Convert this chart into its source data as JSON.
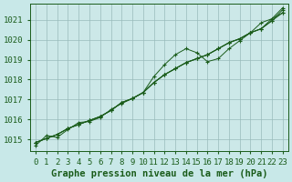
{
  "xlabel": "Graphe pression niveau de la mer (hPa)",
  "bg_color": "#c8e8e8",
  "plot_bg_color": "#cce8e8",
  "grid_color": "#99bbbb",
  "line_color": "#1a5c1a",
  "marker_color": "#1a5c1a",
  "text_color": "#1a5c1a",
  "ylim": [
    1014.4,
    1021.8
  ],
  "xlim": [
    -0.5,
    23.5
  ],
  "yticks": [
    1015,
    1016,
    1017,
    1018,
    1019,
    1020,
    1021
  ],
  "xticks": [
    0,
    1,
    2,
    3,
    4,
    5,
    6,
    7,
    8,
    9,
    10,
    11,
    12,
    13,
    14,
    15,
    16,
    17,
    18,
    19,
    20,
    21,
    22,
    23
  ],
  "series": [
    [
      1014.7,
      1015.2,
      1015.1,
      1015.5,
      1015.85,
      1015.9,
      1016.1,
      1016.5,
      1016.8,
      1017.05,
      1017.35,
      1018.15,
      1018.75,
      1019.25,
      1019.55,
      1019.35,
      1018.9,
      1019.05,
      1019.55,
      1019.95,
      1020.35,
      1020.85,
      1021.05,
      1021.35
    ],
    [
      1014.85,
      1015.05,
      1015.25,
      1015.55,
      1015.75,
      1015.95,
      1016.15,
      1016.45,
      1016.85,
      1017.05,
      1017.35,
      1017.85,
      1018.25,
      1018.55,
      1018.85,
      1019.05,
      1019.25,
      1019.55,
      1019.85,
      1020.05,
      1020.35,
      1020.55,
      1020.95,
      1021.35
    ],
    [
      1014.85,
      1015.05,
      1015.25,
      1015.55,
      1015.75,
      1015.95,
      1016.15,
      1016.45,
      1016.85,
      1017.05,
      1017.35,
      1017.85,
      1018.25,
      1018.55,
      1018.85,
      1019.05,
      1019.25,
      1019.55,
      1019.85,
      1020.05,
      1020.35,
      1020.55,
      1020.95,
      1021.5
    ],
    [
      1014.85,
      1015.05,
      1015.25,
      1015.55,
      1015.75,
      1015.95,
      1016.15,
      1016.45,
      1016.85,
      1017.05,
      1017.35,
      1017.85,
      1018.25,
      1018.55,
      1018.85,
      1019.05,
      1019.25,
      1019.55,
      1019.85,
      1020.05,
      1020.35,
      1020.55,
      1021.05,
      1021.6
    ]
  ],
  "xlabel_fontsize": 7.5,
  "tick_fontsize": 6.5
}
